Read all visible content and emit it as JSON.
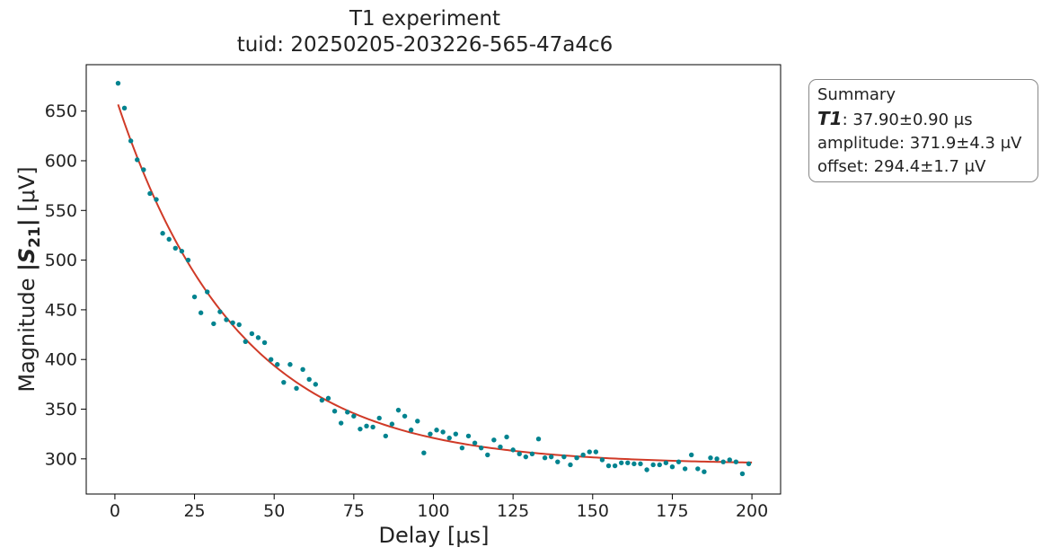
{
  "title_line1": "T1 experiment",
  "title_line2": "tuid: 20250205-203226-565-47a4c6",
  "xlabel": "Delay [μs]",
  "ylabel_prefix": "Magnitude ",
  "ylabel_symbol": "|S",
  "ylabel_subscript": "21",
  "ylabel_symbol_close": "|",
  "ylabel_unit": " [μV]",
  "summary": {
    "heading": "Summary",
    "t1_name": "T1",
    "t1_value": ": 37.90±0.90 μs",
    "amplitude": "amplitude: 371.9±4.3 μV",
    "offset": "offset: 294.4±1.7 μV"
  },
  "colors": {
    "points": "#00838f",
    "fit": "#d03a27",
    "axes": "#000000"
  },
  "chart_data": {
    "type": "scatter",
    "xlim": [
      -9,
      209
    ],
    "ylim": [
      264.6,
      696.7
    ],
    "xticks": [
      0,
      25,
      50,
      75,
      100,
      125,
      150,
      175,
      200
    ],
    "yticks": [
      300,
      350,
      400,
      450,
      500,
      550,
      600,
      650
    ],
    "grid": false,
    "series": [
      {
        "kind": "points",
        "x": [
          1,
          3,
          5,
          7,
          9,
          11,
          13,
          15,
          17,
          19,
          21,
          23,
          25,
          27,
          29,
          31,
          33,
          35,
          37,
          39,
          41,
          43,
          45,
          47,
          49,
          51,
          53,
          55,
          57,
          59,
          61,
          63,
          65,
          67,
          69,
          71,
          73,
          75,
          77,
          79,
          81,
          83,
          85,
          87,
          89,
          91,
          93,
          95,
          97,
          99,
          101,
          103,
          105,
          107,
          109,
          111,
          113,
          115,
          117,
          119,
          121,
          123,
          125,
          127,
          129,
          131,
          133,
          135,
          137,
          139,
          141,
          143,
          145,
          147,
          149,
          151,
          153,
          155,
          157,
          159,
          161,
          163,
          165,
          167,
          169,
          171,
          173,
          175,
          177,
          179,
          181,
          183,
          185,
          187,
          189,
          191,
          193,
          195,
          197,
          199
        ],
        "y": [
          678,
          653,
          620,
          601,
          591,
          567,
          561,
          527,
          521,
          512,
          509,
          500,
          463,
          447,
          468,
          436,
          448,
          440,
          437,
          435,
          418,
          426,
          422,
          417,
          400,
          395,
          377,
          395,
          371,
          390,
          380,
          375,
          359,
          361,
          348,
          336,
          347,
          343,
          330,
          333,
          332,
          341,
          323,
          335,
          349,
          343,
          329,
          338,
          306,
          325,
          329,
          327,
          321,
          325,
          311,
          323,
          316,
          311,
          304,
          319,
          312,
          322,
          309,
          305,
          302,
          305,
          320,
          301,
          302,
          297,
          302,
          294,
          301,
          304,
          307,
          307,
          299,
          293,
          293,
          296,
          296,
          295,
          295,
          289,
          294,
          294,
          296,
          292,
          297,
          290,
          304,
          290,
          287,
          301,
          300,
          297,
          299,
          297,
          285,
          295
        ]
      },
      {
        "kind": "fit",
        "model": "amplitude * exp(-x / T1) + offset",
        "params": {
          "T1": 37.9,
          "amplitude": 371.9,
          "offset": 294.4
        },
        "x_range": [
          1,
          200
        ]
      }
    ]
  }
}
